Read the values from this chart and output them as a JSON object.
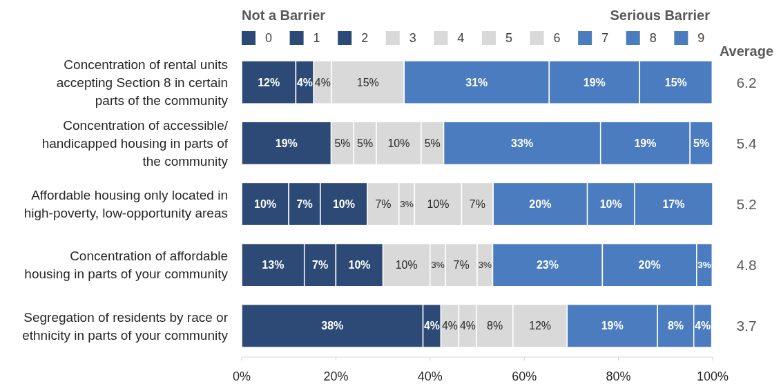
{
  "chart_data": {
    "type": "bar",
    "orientation": "horizontal",
    "stacked": true,
    "categories": [
      "Concentration of rental units\naccepting Section 8 in certain\nparts of the community",
      "Concentration of accessible/\nhandicapped housing in parts of\nthe community",
      "Affordable housing only located in\nhigh-poverty, low-opportunity areas",
      "Concentration of affordable\nhousing in parts of your community",
      "Segregation of residents by race or\nethnicity in parts of your community"
    ],
    "series": [
      {
        "name": "0",
        "color": "#2c4a75",
        "values": [
          11.5,
          19.0,
          10,
          13.3,
          38.5
        ],
        "value_labels": [
          "12%",
          "19%",
          "10%",
          "13%",
          "38%"
        ]
      },
      {
        "name": "1",
        "color": "#2c4a75",
        "values": [
          3.8,
          null,
          6.7,
          6.7,
          3.8
        ],
        "value_labels": [
          "4%",
          null,
          "7%",
          "7%",
          "4%"
        ]
      },
      {
        "name": "2",
        "color": "#2c4a75",
        "values": [
          null,
          null,
          10,
          10,
          null
        ],
        "value_labels": [
          null,
          null,
          "10%",
          "10%",
          null
        ]
      },
      {
        "name": "3",
        "color": "#d9d9d9",
        "values": [
          null,
          4.8,
          6.7,
          10,
          3.8
        ],
        "value_labels": [
          null,
          "5%",
          "7%",
          "10%",
          "4%"
        ]
      },
      {
        "name": "4",
        "color": "#d9d9d9",
        "values": [
          3.8,
          4.8,
          3.3,
          3.3,
          3.8
        ],
        "value_labels": [
          "4%",
          "5%",
          "3%",
          "3%",
          "4%"
        ]
      },
      {
        "name": "5",
        "color": "#d9d9d9",
        "values": [
          null,
          9.5,
          10,
          6.7,
          7.7
        ],
        "value_labels": [
          null,
          "10%",
          "10%",
          "7%",
          "8%"
        ]
      },
      {
        "name": "6",
        "color": "#d9d9d9",
        "values": [
          15.4,
          4.8,
          6.7,
          3.3,
          11.5
        ],
        "value_labels": [
          "15%",
          "5%",
          "7%",
          "3%",
          "12%"
        ]
      },
      {
        "name": "7",
        "color": "#4a7cbf",
        "values": [
          30.8,
          33.3,
          20,
          23.3,
          19.2
        ],
        "value_labels": [
          "31%",
          "33%",
          "20%",
          "23%",
          "19%"
        ]
      },
      {
        "name": "8",
        "color": "#4a7cbf",
        "values": [
          19.2,
          19.0,
          10,
          20,
          7.7
        ],
        "value_labels": [
          "19%",
          "19%",
          "10%",
          "20%",
          "8%"
        ]
      },
      {
        "name": "9",
        "color": "#4a7cbf",
        "values": [
          15.4,
          4.8,
          16.6,
          3.3,
          3.8
        ],
        "value_labels": [
          "15%",
          "5%",
          "17%",
          "3%",
          "4%"
        ]
      }
    ],
    "xlim": [
      0,
      100
    ],
    "xticks": [
      {
        "value": 0,
        "label": "0%"
      },
      {
        "value": 20,
        "label": "20%"
      },
      {
        "value": 40,
        "label": "40%"
      },
      {
        "value": 60,
        "label": "60%"
      },
      {
        "value": 80,
        "label": "80%"
      },
      {
        "value": 100,
        "label": "100%"
      }
    ],
    "legend": "top",
    "annotations": [
      "Not a Barrier",
      "Serious Barrier"
    ],
    "y2label": "Average",
    "y2_categories": [
      "6.2",
      "5.4",
      "5.2",
      "4.8",
      "3.7"
    ]
  }
}
